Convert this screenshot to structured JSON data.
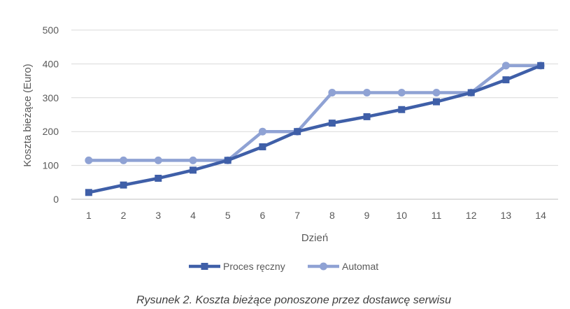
{
  "chart_data": {
    "type": "line",
    "x": [
      1,
      2,
      3,
      4,
      5,
      6,
      7,
      8,
      9,
      10,
      11,
      12,
      13,
      14
    ],
    "xlabel": "Dzień",
    "ylabel": "Koszta bieżące (Euro)",
    "ylim": [
      0,
      500
    ],
    "yticks": [
      0,
      100,
      200,
      300,
      400,
      500
    ],
    "grid": true,
    "legend_position": "bottom",
    "series": [
      {
        "name": "Proces ręczny",
        "color": "#3F5FA8",
        "marker": "square",
        "values": [
          20,
          42,
          62,
          86,
          115,
          155,
          200,
          225,
          244,
          265,
          288,
          315,
          353,
          395
        ]
      },
      {
        "name": "Automat",
        "color": "#8FA2D4",
        "marker": "circle",
        "values": [
          115,
          115,
          115,
          115,
          115,
          200,
          200,
          315,
          315,
          315,
          315,
          315,
          395,
          395
        ]
      }
    ]
  },
  "caption": "Rysunek 2. Koszta bieżące ponoszone przez dostawcę serwisu"
}
